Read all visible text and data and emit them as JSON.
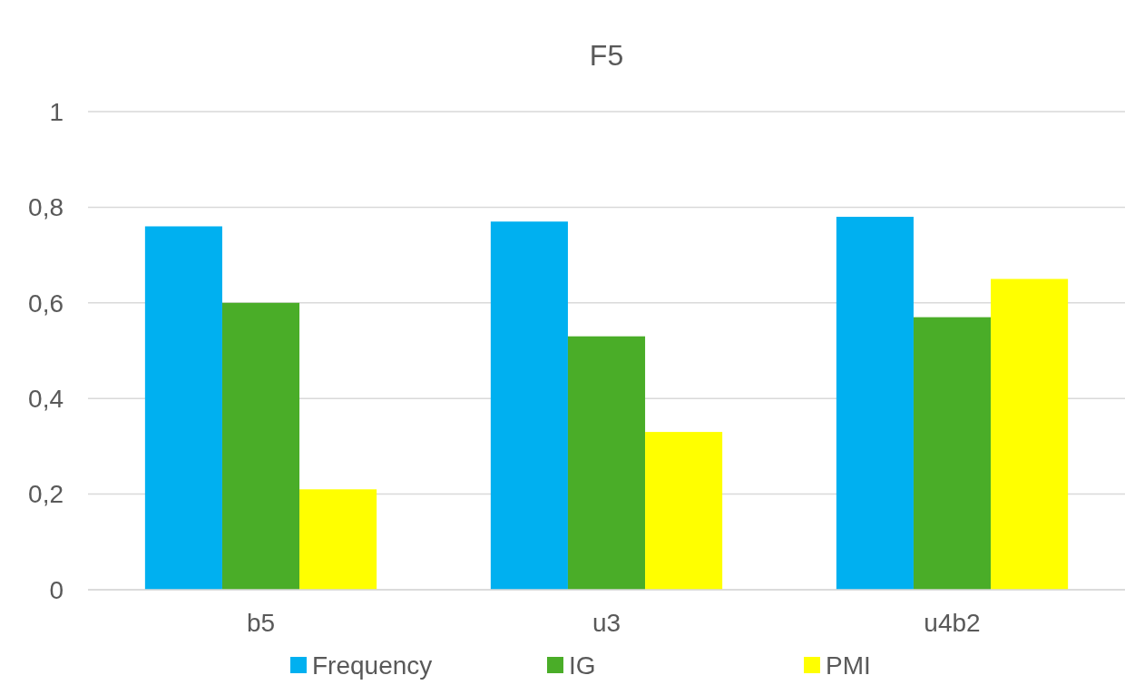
{
  "chart_data": {
    "type": "bar",
    "title": "F5",
    "categories": [
      "b5",
      "u3",
      "u4b2"
    ],
    "series": [
      {
        "name": "Frequency",
        "color": "#00b0f0",
        "values": [
          0.76,
          0.77,
          0.78
        ]
      },
      {
        "name": "IG",
        "color": "#4aad28",
        "values": [
          0.6,
          0.53,
          0.57
        ]
      },
      {
        "name": "PMI",
        "color": "#ffff00",
        "values": [
          0.21,
          0.33,
          0.65
        ]
      }
    ],
    "ylim": [
      0,
      1
    ],
    "yticks": [
      {
        "value": 0,
        "label": "0"
      },
      {
        "value": 0.2,
        "label": "0,2"
      },
      {
        "value": 0.4,
        "label": "0,4"
      },
      {
        "value": 0.6,
        "label": "0,6"
      },
      {
        "value": 0.8,
        "label": "0,8"
      },
      {
        "value": 1,
        "label": "1"
      }
    ],
    "grid": "y",
    "legend": "bottom"
  }
}
